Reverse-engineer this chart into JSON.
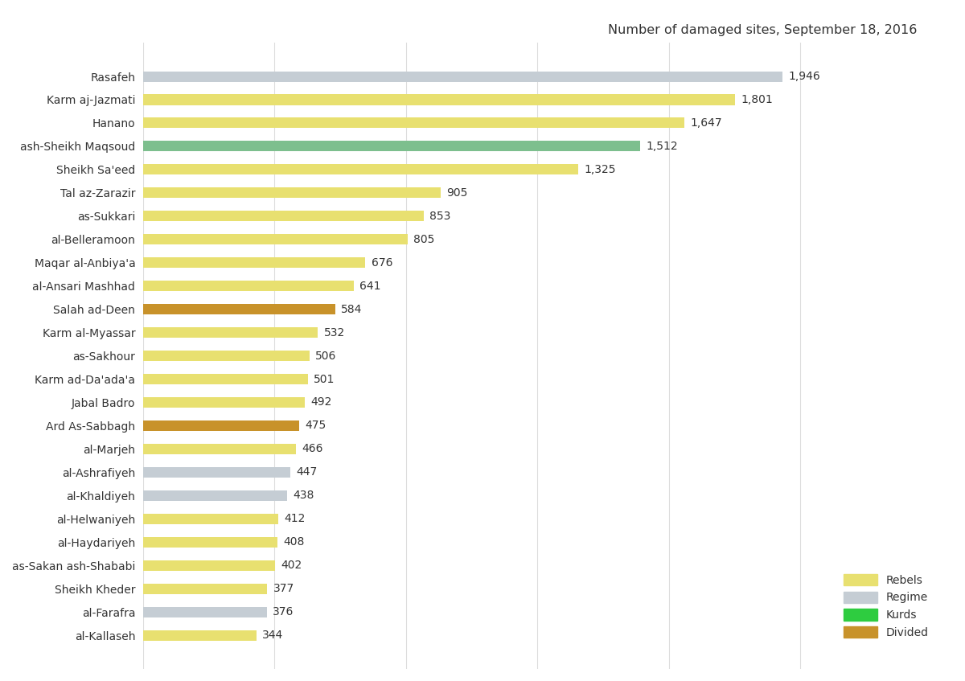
{
  "title": "Number of damaged sites, September 18, 2016",
  "categories": [
    "al-Kallaseh",
    "al-Farafra",
    "Sheikh Kheder",
    "as-Sakan ash-Shababi",
    "al-Haydariyeh",
    "al-Helwaniyeh",
    "al-Khaldiyeh",
    "al-Ashrafiyeh",
    "al-Marjeh",
    "Ard As-Sabbagh",
    "Jabal Badro",
    "Karm ad-Da'ada'a",
    "as-Sakhour",
    "Karm al-Myassar",
    "Salah ad-Deen",
    "al-Ansari Mashhad",
    "Maqar al-Anbiya'a",
    "al-Belleramoon",
    "as-Sukkari",
    "Tal az-Zarazir",
    "Sheikh Sa'eed",
    "ash-Sheikh Maqsoud",
    "Hanano",
    "Karm aj-Jazmati",
    "Rasafeh"
  ],
  "values": [
    344,
    376,
    377,
    402,
    408,
    412,
    438,
    447,
    466,
    475,
    492,
    501,
    506,
    532,
    584,
    641,
    676,
    805,
    853,
    905,
    1325,
    1512,
    1647,
    1801,
    1946
  ],
  "colors": [
    "#e8e070",
    "#c5cdd4",
    "#e8e070",
    "#e8e070",
    "#e8e070",
    "#e8e070",
    "#c5cdd4",
    "#c5cdd4",
    "#e8e070",
    "#c8922a",
    "#e8e070",
    "#e8e070",
    "#e8e070",
    "#e8e070",
    "#c8922a",
    "#e8e070",
    "#e8e070",
    "#e8e070",
    "#e8e070",
    "#e8e070",
    "#e8e070",
    "#7dbf8e",
    "#e8e070",
    "#e8e070",
    "#c5cdd4"
  ],
  "legend_labels": [
    "Rebels",
    "Regime",
    "Kurds",
    "Divided"
  ],
  "legend_colors": [
    "#e8e070",
    "#c5cdd4",
    "#2ecc40",
    "#c8922a"
  ],
  "background_color": "#ffffff",
  "plot_bg_color": "#ffffff",
  "bar_height": 0.45,
  "xlim": [
    0,
    2150
  ],
  "title_fontsize": 11.5,
  "label_fontsize": 10,
  "value_fontsize": 10,
  "grid_color": "#dddddd",
  "text_color": "#333333",
  "xticks": [
    0,
    400,
    800,
    1200,
    1600,
    2000
  ]
}
